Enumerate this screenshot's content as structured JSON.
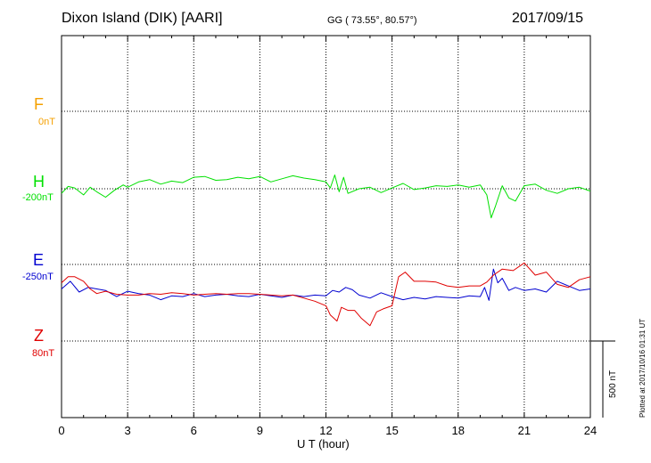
{
  "header": {
    "station": "Dixon Island (DIK)  [AARI]",
    "coords": "GG ( 73.55°,  80.57°)",
    "date": "2017/09/15"
  },
  "side_note": "Plotted at 2017/10/16 01:31  UT",
  "colors": {
    "F": "#f5a000",
    "H": "#00e000",
    "E": "#0000d0",
    "Z": "#e00000"
  },
  "chart_data": {
    "type": "line",
    "xlabel": "U T (hour)",
    "xlim": [
      0,
      24
    ],
    "x_ticks": [
      "0",
      "3",
      "6",
      "9",
      "12",
      "15",
      "18",
      "21",
      "24"
    ],
    "grid": true,
    "scale_bar": "500 nT",
    "channels": [
      {
        "name": "F",
        "offset": "0nT"
      },
      {
        "name": "H",
        "offset": "-200nT"
      },
      {
        "name": "E",
        "offset": "-250nT"
      },
      {
        "name": "Z",
        "offset": "80nT"
      }
    ],
    "series": [
      {
        "name": "H",
        "x": [
          0,
          0.3,
          0.6,
          1.0,
          1.3,
          1.6,
          2.0,
          2.4,
          2.8,
          3.0,
          3.5,
          4.0,
          4.5,
          5.0,
          5.5,
          6.0,
          6.5,
          7.0,
          7.5,
          8.0,
          8.5,
          9.0,
          9.5,
          10.0,
          10.5,
          11.0,
          11.5,
          12.0,
          12.2,
          12.4,
          12.6,
          12.8,
          13.0,
          13.5,
          14.0,
          14.5,
          15.0,
          15.5,
          16.0,
          16.5,
          17.0,
          17.5,
          18.0,
          18.5,
          19.0,
          19.3,
          19.5,
          19.7,
          20.0,
          20.3,
          20.6,
          21.0,
          21.5,
          22.0,
          22.5,
          23.0,
          23.5,
          24.0
        ],
        "y": [
          -30,
          15,
          5,
          -40,
          10,
          -20,
          -55,
          -10,
          25,
          10,
          45,
          60,
          30,
          50,
          40,
          75,
          80,
          55,
          60,
          75,
          65,
          80,
          45,
          65,
          85,
          70,
          60,
          45,
          5,
          90,
          -20,
          75,
          -30,
          0,
          10,
          -25,
          5,
          35,
          -5,
          5,
          20,
          15,
          25,
          10,
          25,
          -40,
          -190,
          -110,
          20,
          -60,
          -80,
          20,
          30,
          -10,
          -30,
          0,
          10,
          -15
        ]
      },
      {
        "name": "E",
        "x": [
          0,
          0.4,
          0.8,
          1.2,
          1.6,
          2.0,
          2.5,
          3.0,
          3.5,
          4.0,
          4.5,
          5.0,
          5.5,
          6.0,
          6.5,
          7.0,
          7.5,
          8.0,
          8.5,
          9.0,
          9.5,
          10.0,
          10.5,
          11.0,
          11.5,
          12.0,
          12.3,
          12.6,
          12.9,
          13.2,
          13.5,
          14.0,
          14.5,
          15.0,
          15.5,
          16.0,
          16.5,
          17.0,
          17.5,
          18.0,
          18.5,
          19.0,
          19.2,
          19.4,
          19.6,
          19.8,
          20.0,
          20.3,
          20.6,
          21.0,
          21.5,
          22.0,
          22.5,
          23.0,
          23.5,
          24.0
        ],
        "y": [
          -160,
          -110,
          -180,
          -150,
          -160,
          -170,
          -210,
          -175,
          -190,
          -200,
          -230,
          -205,
          -210,
          -190,
          -210,
          -200,
          -195,
          -205,
          -210,
          -195,
          -205,
          -215,
          -200,
          -210,
          -200,
          -205,
          -170,
          -180,
          -150,
          -165,
          -200,
          -220,
          -185,
          -210,
          -230,
          -215,
          -225,
          -210,
          -215,
          -220,
          -205,
          -210,
          -150,
          -235,
          -30,
          -120,
          -90,
          -170,
          -150,
          -170,
          -160,
          -180,
          -110,
          -140,
          -170,
          -160
        ]
      },
      {
        "name": "Z",
        "x": [
          0,
          0.3,
          0.6,
          1.0,
          1.3,
          1.6,
          2.0,
          2.5,
          3.0,
          3.5,
          4.0,
          4.5,
          5.0,
          5.5,
          6.0,
          6.5,
          7.0,
          7.5,
          8.0,
          8.5,
          9.0,
          9.5,
          10.0,
          10.5,
          11.0,
          11.5,
          12.0,
          12.2,
          12.5,
          12.7,
          13.0,
          13.3,
          13.6,
          14.0,
          14.3,
          14.6,
          15.0,
          15.3,
          15.6,
          16.0,
          16.5,
          17.0,
          17.5,
          18.0,
          18.5,
          19.0,
          19.3,
          19.6,
          20.0,
          20.5,
          21.0,
          21.5,
          22.0,
          22.5,
          23.0,
          23.5,
          24.0
        ],
        "y": [
          380,
          420,
          420,
          390,
          340,
          310,
          325,
          305,
          300,
          300,
          310,
          305,
          315,
          310,
          300,
          305,
          310,
          305,
          310,
          310,
          305,
          300,
          295,
          300,
          280,
          260,
          230,
          170,
          130,
          220,
          200,
          200,
          150,
          100,
          190,
          210,
          230,
          420,
          450,
          390,
          390,
          385,
          360,
          350,
          360,
          360,
          385,
          430,
          470,
          460,
          510,
          430,
          450,
          370,
          350,
          400,
          420
        ]
      }
    ]
  }
}
